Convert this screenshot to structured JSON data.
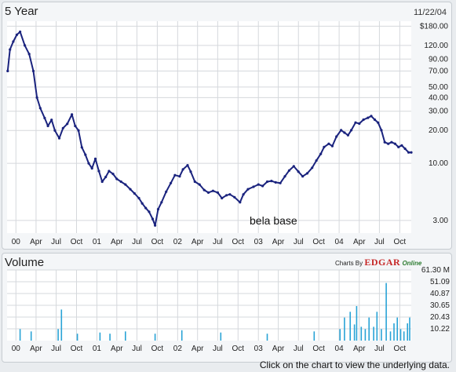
{
  "price_panel": {
    "title": "5 Year",
    "date": "11/22/04",
    "annotation": "bela base"
  },
  "volume_panel": {
    "title": "Volume",
    "charts_by_label": "Charts By",
    "edgar_label": "EDGAR",
    "online_label": "Online"
  },
  "footer_text": "Click on the chart to view the underlying data.",
  "colors": {
    "price_line": "#1a237e",
    "volume_bars": "#29a3d6",
    "grid": "#d5d8dc"
  },
  "chart_data": [
    {
      "type": "line",
      "title": "5 Year",
      "yscale": "log",
      "ylim": [
        2.3,
        200
      ],
      "y_tick_labels": [
        "$180.00",
        "120.00",
        "90.00",
        "70.00",
        "50.00",
        "40.00",
        "30.00",
        "20.00",
        "10.00",
        "3.00"
      ],
      "y_tick_values": [
        180,
        120,
        90,
        70,
        50,
        40,
        30,
        20,
        10,
        3
      ],
      "x_tick_labels": [
        "00",
        "Apr",
        "Jul",
        "Oct",
        "01",
        "Apr",
        "Jul",
        "Oct",
        "02",
        "Apr",
        "Jul",
        "Oct",
        "03",
        "Apr",
        "Jul",
        "Oct",
        "04",
        "Apr",
        "Jul",
        "Oct"
      ],
      "x_range": [
        "1999-11-22",
        "2004-11-22"
      ],
      "series": [
        {
          "x": [
            "1999-11-25",
            "1999-12-05",
            "1999-12-20",
            "2000-01-05",
            "2000-01-20",
            "2000-02-10",
            "2000-03-01",
            "2000-03-20",
            "2000-04-05",
            "2000-04-20",
            "2000-05-10",
            "2000-05-25",
            "2000-06-10",
            "2000-06-25",
            "2000-07-15",
            "2000-08-01",
            "2000-08-20",
            "2000-09-10",
            "2000-09-25",
            "2000-10-10",
            "2000-10-25",
            "2000-11-10",
            "2000-11-25",
            "2000-12-10",
            "2000-12-25",
            "2001-01-10",
            "2001-01-25",
            "2001-02-10",
            "2001-02-25",
            "2001-03-15",
            "2001-04-01",
            "2001-04-20",
            "2001-05-10",
            "2001-06-01",
            "2001-06-20",
            "2001-07-10",
            "2001-07-25",
            "2001-08-10",
            "2001-08-25",
            "2001-09-10",
            "2001-09-21",
            "2001-10-05",
            "2001-10-20",
            "2001-11-10",
            "2001-12-01",
            "2001-12-20",
            "2002-01-10",
            "2002-01-25",
            "2002-02-15",
            "2002-03-01",
            "2002-03-20",
            "2002-04-10",
            "2002-05-01",
            "2002-05-20",
            "2002-06-10",
            "2002-07-01",
            "2002-07-20",
            "2002-08-10",
            "2002-08-25",
            "2002-09-15",
            "2002-10-10",
            "2002-10-25",
            "2002-11-15",
            "2002-12-10",
            "2003-01-01",
            "2003-01-20",
            "2003-02-10",
            "2003-03-01",
            "2003-03-20",
            "2003-04-10",
            "2003-05-01",
            "2003-05-20",
            "2003-06-10",
            "2003-07-01",
            "2003-07-20",
            "2003-08-10",
            "2003-09-01",
            "2003-09-20",
            "2003-10-10",
            "2003-10-25",
            "2003-11-15",
            "2003-12-01",
            "2003-12-20",
            "2004-01-10",
            "2004-01-25",
            "2004-02-10",
            "2004-02-25",
            "2004-03-15",
            "2004-04-01",
            "2004-04-20",
            "2004-05-10",
            "2004-05-25",
            "2004-06-10",
            "2004-06-25",
            "2004-07-10",
            "2004-07-25",
            "2004-08-10",
            "2004-08-25",
            "2004-09-10",
            "2004-09-25",
            "2004-10-10",
            "2004-10-25",
            "2004-11-10",
            "2004-11-22"
          ],
          "y": [
            70,
            110,
            130,
            150,
            160,
            120,
            100,
            70,
            40,
            32,
            26,
            22,
            25,
            20,
            17,
            21,
            23,
            28,
            22,
            20,
            14,
            12,
            10,
            9,
            11,
            8.5,
            6.8,
            7.5,
            8.5,
            8,
            7.2,
            6.8,
            6.4,
            5.8,
            5.3,
            4.8,
            4.3,
            3.9,
            3.6,
            3.1,
            2.7,
            3.8,
            4.4,
            5.5,
            6.6,
            7.8,
            7.6,
            8.8,
            9.6,
            8.4,
            6.8,
            6.4,
            5.7,
            5.4,
            5.6,
            5.4,
            4.8,
            5.1,
            5.2,
            4.9,
            4.4,
            5.2,
            5.8,
            6.1,
            6.4,
            6.2,
            6.8,
            6.9,
            6.7,
            6.6,
            7.6,
            8.6,
            9.4,
            8.4,
            7.6,
            8.1,
            9.1,
            10.6,
            12.2,
            14.1,
            15.1,
            14.4,
            17.6,
            20.1,
            19.1,
            18.1,
            20.1,
            23.6,
            23.1,
            25.1,
            26.1,
            27.1,
            25.1,
            23.6,
            20.1,
            15.6,
            15.1,
            15.6,
            15.1,
            14.1,
            14.6,
            13.6,
            12.6,
            12.6
          ]
        }
      ]
    },
    {
      "type": "bar",
      "title": "Volume",
      "ylim": [
        0,
        61.3
      ],
      "y_tick_labels": [
        "61.30 M",
        "51.09",
        "40.87",
        "30.65",
        "20.43",
        "10.22"
      ],
      "y_tick_values": [
        61.3,
        51.09,
        40.87,
        30.65,
        20.43,
        10.22
      ],
      "x_tick_labels": [
        "00",
        "Apr",
        "Jul",
        "Oct",
        "01",
        "Apr",
        "Jul",
        "Oct",
        "02",
        "Apr",
        "Jul",
        "Oct",
        "03",
        "Apr",
        "Jul",
        "Oct",
        "04",
        "Apr",
        "Jul",
        "Oct"
      ],
      "series": [
        {
          "x": [
            "2000-01-20",
            "2000-03-10",
            "2000-07-10",
            "2000-07-25",
            "2000-10-05",
            "2001-01-15",
            "2001-03-01",
            "2001-05-10",
            "2001-09-21",
            "2002-01-20",
            "2002-07-15",
            "2003-02-10",
            "2003-09-10",
            "2004-01-05",
            "2004-01-25",
            "2004-02-20",
            "2004-03-10",
            "2004-03-20",
            "2004-04-10",
            "2004-04-28",
            "2004-05-15",
            "2004-06-05",
            "2004-06-20",
            "2004-07-10",
            "2004-08-01",
            "2004-08-20",
            "2004-09-05",
            "2004-09-20",
            "2004-10-05",
            "2004-10-20",
            "2004-11-05",
            "2004-11-15"
          ],
          "y": [
            10,
            8,
            10,
            27,
            6,
            7,
            6,
            8,
            6,
            9,
            7,
            6,
            8,
            10,
            20,
            25,
            14,
            30,
            12,
            10,
            20,
            12,
            25,
            10,
            50,
            8,
            15,
            20,
            10,
            8,
            15,
            20
          ]
        }
      ]
    }
  ]
}
